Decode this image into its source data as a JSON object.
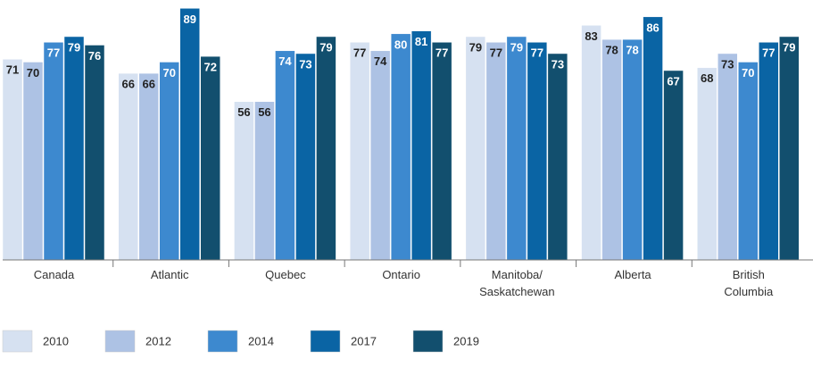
{
  "chart_data": {
    "type": "bar",
    "categories": [
      "Canada",
      "Atlantic",
      "Quebec",
      "Ontario",
      "Manitoba/ Saskatchewan",
      "Alberta",
      "British Columbia"
    ],
    "series": [
      {
        "name": "2010",
        "color": "#d6e1f1",
        "values": [
          71,
          66,
          56,
          77,
          79,
          83,
          68
        ]
      },
      {
        "name": "2012",
        "color": "#adc2e4",
        "values": [
          70,
          66,
          56,
          74,
          77,
          78,
          73
        ]
      },
      {
        "name": "2014",
        "color": "#3d89cf",
        "values": [
          77,
          70,
          74,
          80,
          79,
          78,
          70
        ]
      },
      {
        "name": "2017",
        "color": "#0a64a4",
        "values": [
          79,
          89,
          73,
          81,
          77,
          86,
          77
        ]
      },
      {
        "name": "2019",
        "color": "#124f6e",
        "values": [
          76,
          72,
          79,
          77,
          73,
          67,
          79
        ]
      }
    ],
    "ylim": [
      0,
      91
    ],
    "legend": "bottom"
  }
}
